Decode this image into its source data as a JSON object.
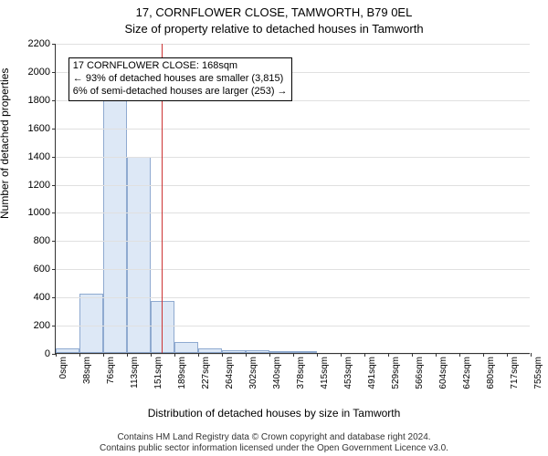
{
  "chart": {
    "type": "histogram",
    "background_color": "#ffffff",
    "title_line1": "17, CORNFLOWER CLOSE, TAMWORTH, B79 0EL",
    "title_line2": "Size of property relative to detached houses in Tamworth",
    "title_fontsize": 13,
    "ylabel": "Number of detached properties",
    "xlabel": "Distribution of detached houses by size in Tamworth",
    "label_fontsize": 12,
    "ylim": [
      0,
      2200
    ],
    "ytick_step": 200,
    "grid_color": "#e0e0e0",
    "bar_fill_color": "#dde8f6",
    "bar_border_color": "#8faad0",
    "bar_border_width": 1,
    "xtick_labels": [
      "0sqm",
      "38sqm",
      "76sqm",
      "113sqm",
      "151sqm",
      "189sqm",
      "227sqm",
      "264sqm",
      "302sqm",
      "340sqm",
      "378sqm",
      "415sqm",
      "453sqm",
      "491sqm",
      "529sqm",
      "566sqm",
      "604sqm",
      "642sqm",
      "680sqm",
      "717sqm",
      "755sqm"
    ],
    "bar_values": [
      30,
      420,
      1800,
      1390,
      370,
      80,
      30,
      20,
      20,
      10,
      10,
      0,
      0,
      0,
      0,
      0,
      0,
      0,
      0,
      0
    ],
    "refline": {
      "x_sqm": 168,
      "color": "#cc3333",
      "width": 1.5
    },
    "annotation": {
      "line1": "17 CORNFLOWER CLOSE: 168sqm",
      "line2": "← 93% of detached houses are smaller (3,815)",
      "line3": "6% of semi-detached houses are larger (253) →",
      "fontsize": 11,
      "x_sqm_start": 20,
      "y_value": 2100
    }
  },
  "footer": {
    "line1": "Contains HM Land Registry data © Crown copyright and database right 2024.",
    "line2": "Contains public sector information licensed under the Open Government Licence v3.0."
  }
}
